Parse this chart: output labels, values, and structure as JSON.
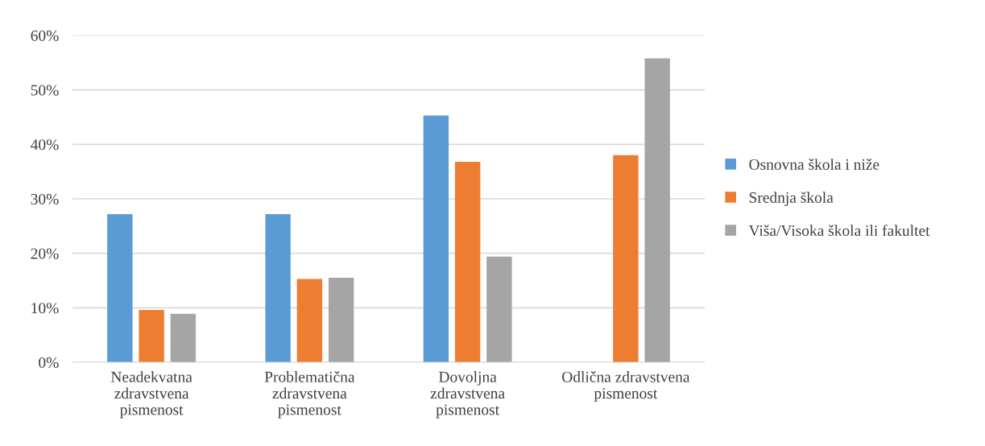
{
  "chart_data": {
    "type": "bar",
    "categories": [
      "Neadekvatna\nzdravstvena\npismenost",
      "Problematična\nzdravstvena\npismenost",
      "Dovoljna\nzdravstvena\npismenost",
      "Odlična zdravstvena\npismenost"
    ],
    "series": [
      {
        "name": "Osnovna škola i niže",
        "color": "#5b9bd5",
        "values": [
          27.2,
          27.2,
          45.3,
          0
        ]
      },
      {
        "name": "Srednja škola",
        "color": "#ed7d31",
        "values": [
          9.6,
          15.3,
          36.8,
          38.0
        ]
      },
      {
        "name": "Viša/Visoka škola ili fakultet",
        "color": "#a5a5a5",
        "values": [
          8.9,
          15.5,
          19.4,
          55.8
        ]
      }
    ],
    "ylim": [
      0,
      60
    ],
    "yticks": [
      {
        "value": 0,
        "label": "0%"
      },
      {
        "value": 10,
        "label": "10%"
      },
      {
        "value": 20,
        "label": "20%"
      },
      {
        "value": 30,
        "label": "30%"
      },
      {
        "value": 40,
        "label": "40%"
      },
      {
        "value": 50,
        "label": "50%"
      },
      {
        "value": 60,
        "label": "60%"
      }
    ],
    "grid": "y",
    "legend": "right"
  }
}
